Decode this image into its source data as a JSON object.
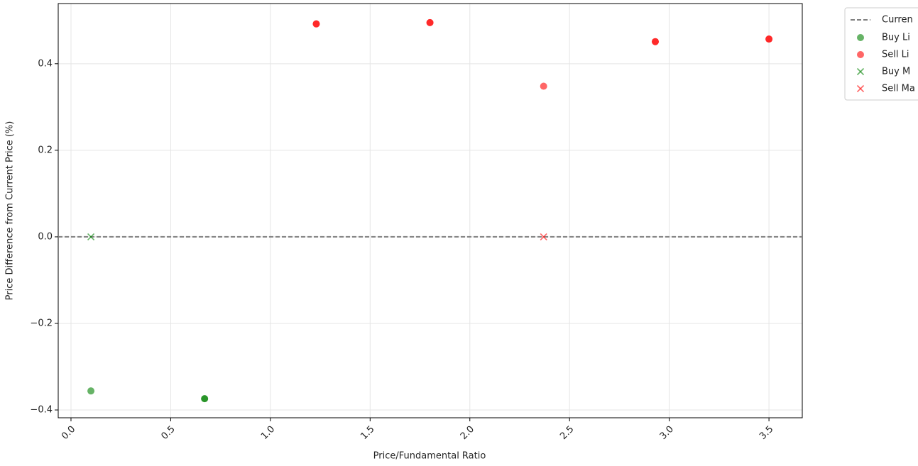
{
  "chart_data": {
    "type": "scatter",
    "x_label": "Price/Fundamental Ratio",
    "y_label": "Price Difference from Current Price (%)",
    "xlim": [
      -0.064,
      3.667
    ],
    "ylim": [
      -0.418,
      0.539
    ],
    "xticks": [
      {
        "value": 0,
        "label": "0.0"
      },
      0.5,
      {
        "value": 1,
        "label": "1.0"
      },
      1.5,
      {
        "value": 2,
        "label": "2.0"
      },
      2.5,
      {
        "value": 3,
        "label": "3.0"
      },
      3.5
    ],
    "yticks": [
      {
        "value": -0.4,
        "label": "−0.4"
      },
      {
        "value": -0.2,
        "label": "−0.2"
      },
      {
        "value": 0,
        "label": "0.0"
      },
      0.2,
      0.4
    ],
    "grid": true,
    "legend_position": "outside-upper-right",
    "reference_line": {
      "name": "Curren",
      "value": 0,
      "color": "#808080"
    },
    "series": [
      {
        "name": "Buy Li",
        "color": "#008000",
        "marker": "o",
        "x": [
          0.1,
          0.67,
          0.67
        ],
        "values": [
          -0.356,
          -0.374,
          -0.374
        ]
      },
      {
        "name": "Sell Li",
        "color": "#ff0000",
        "marker": "o",
        "x": [
          1.23,
          1.23,
          1.8,
          1.8,
          2.37,
          2.93,
          2.93,
          3.5,
          3.5
        ],
        "values": [
          0.492,
          0.492,
          0.495,
          0.495,
          0.348,
          0.451,
          0.451,
          0.457,
          0.457
        ]
      },
      {
        "name": "Buy M",
        "color": "#008000",
        "marker": "x",
        "x": [
          0.1
        ],
        "values": [
          0
        ]
      },
      {
        "name": "Sell Ma",
        "color": "#ff0000",
        "marker": "x",
        "x": [
          2.37
        ],
        "values": [
          0
        ]
      }
    ]
  }
}
